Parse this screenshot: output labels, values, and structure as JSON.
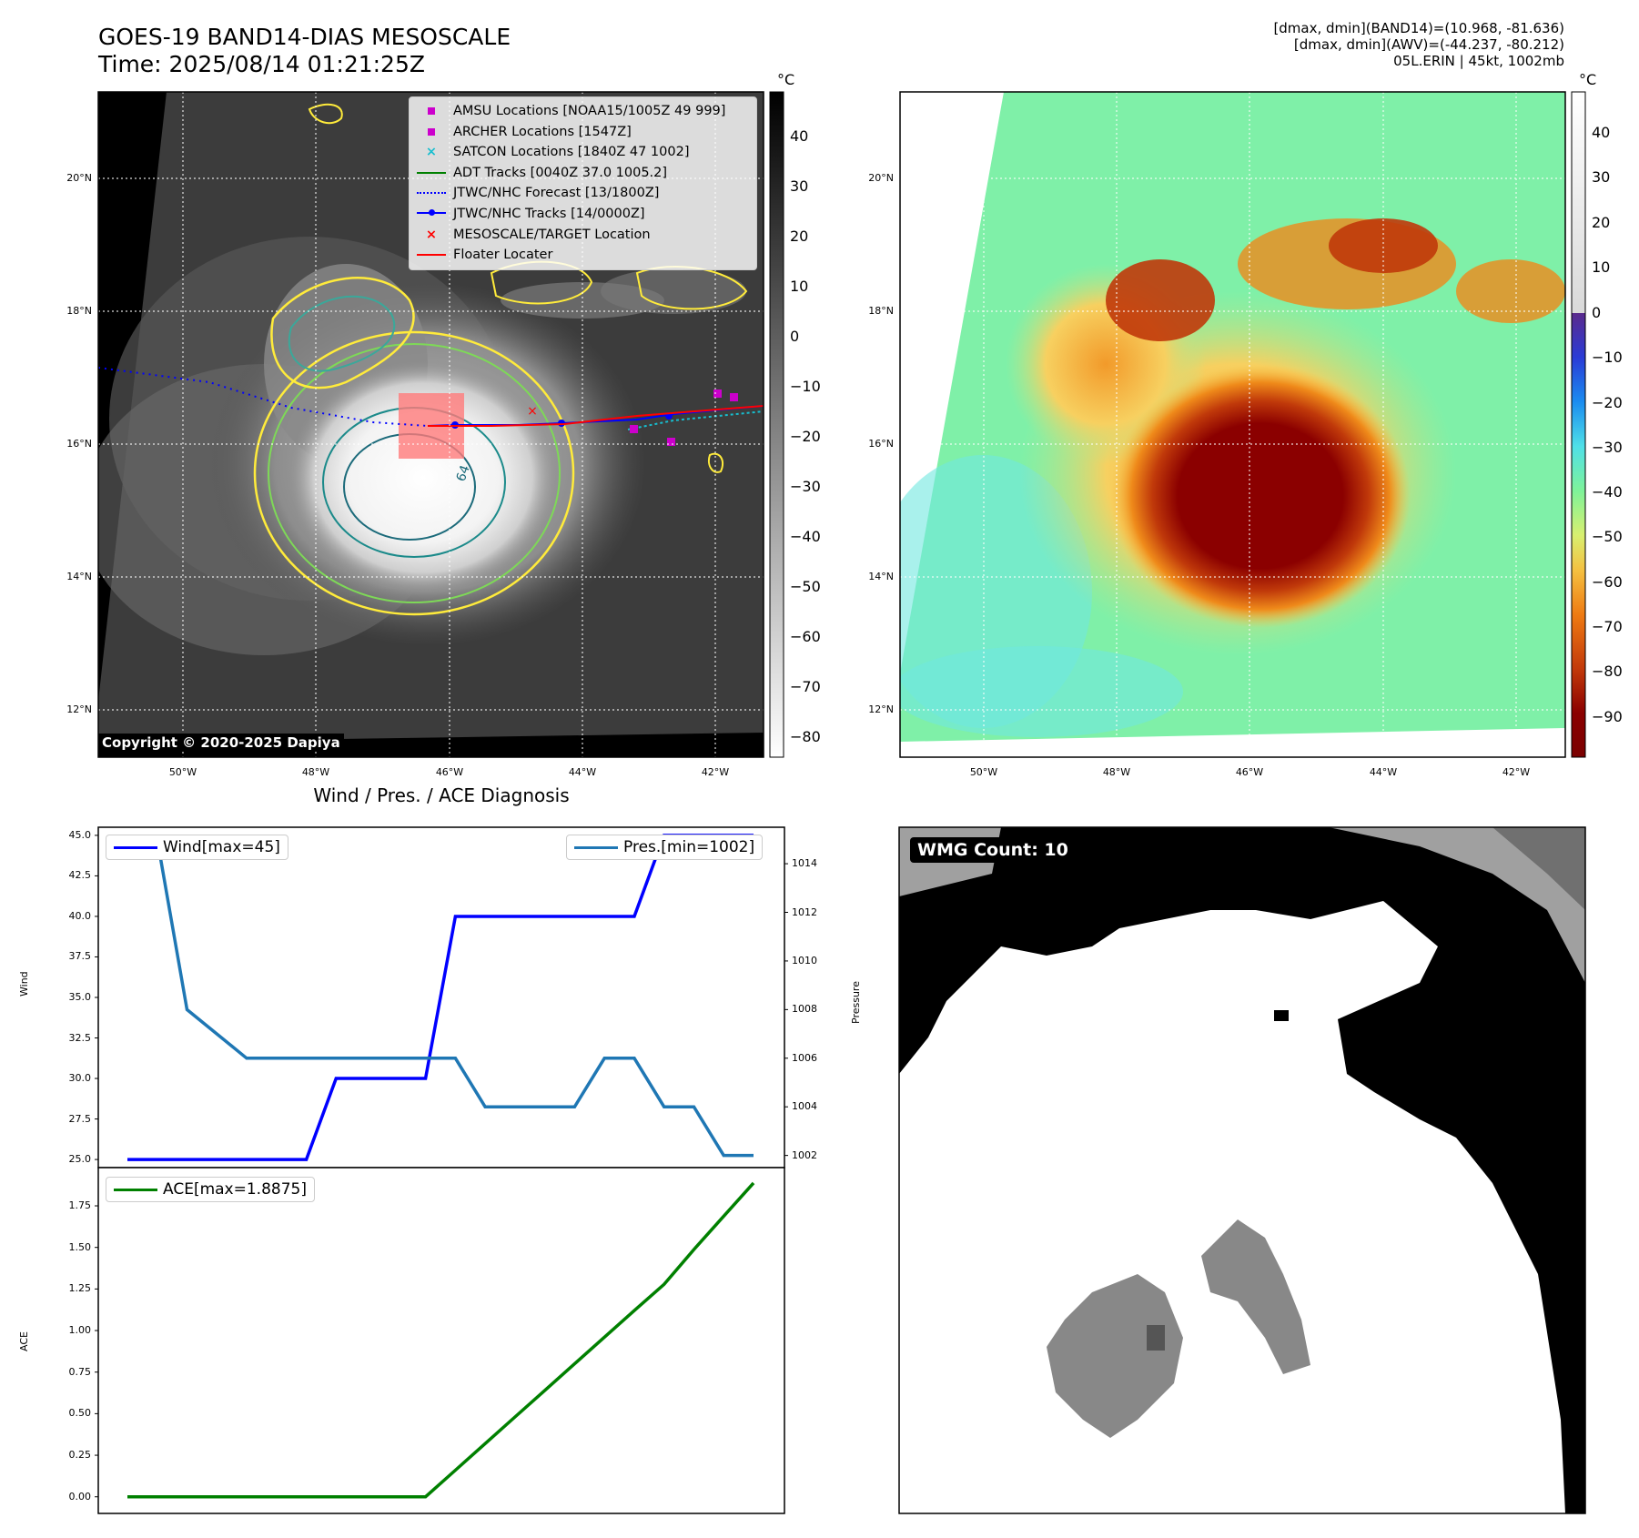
{
  "header": {
    "title_line1": "GOES-19 BAND14-DIAS MESOSCALE",
    "title_line2": "Time: 2025/08/14 01:21:25Z",
    "info_line1": "[dmax, dmin](BAND14)=(10.968, -81.636)",
    "info_line2": "[dmax, dmin](AWV)=(-44.237, -80.212)",
    "info_line3": "05L.ERIN | 45kt, 1002mb"
  },
  "map_axes": {
    "lat_labels": [
      "20°N",
      "18°N",
      "16°N",
      "14°N",
      "12°N"
    ],
    "lon_labels": [
      "50°W",
      "48°W",
      "46°W",
      "44°W",
      "42°W"
    ]
  },
  "ir_panel": {
    "colorbar_unit": "°C",
    "colorbar_ticks": [
      "40",
      "30",
      "20",
      "10",
      "0",
      "−10",
      "−20",
      "−30",
      "−40",
      "−50",
      "−60",
      "−70",
      "−80"
    ],
    "contour_label": "64",
    "copyright": "Copyright © 2020-2025 Dapiya",
    "legend": [
      {
        "label": "AMSU Locations [NOAA15/1005Z 49 999]",
        "color": "#cc00cc",
        "marker": "square"
      },
      {
        "label": "ARCHER Locations [1547Z]",
        "color": "#cc00cc",
        "marker": "square"
      },
      {
        "label": "SATCON Locations [1840Z 47 1002]",
        "color": "#17becf",
        "marker": "x"
      },
      {
        "label": "ADT Tracks [0040Z 37.0 1005.2]",
        "color": "#008000",
        "marker": "line"
      },
      {
        "label": "JTWC/NHC Forecast [13/1800Z]",
        "color": "#0000ff",
        "marker": "dotted"
      },
      {
        "label": "JTWC/NHC Tracks [14/0000Z]",
        "color": "#0000ff",
        "marker": "line-dot"
      },
      {
        "label": "MESOSCALE/TARGET Location",
        "color": "#ff0000",
        "marker": "x"
      },
      {
        "label": "Floater Locater",
        "color": "#ff0000",
        "marker": "line"
      }
    ]
  },
  "dias_panel": {
    "colorbar_unit": "°C",
    "colorbar_ticks": [
      "40",
      "30",
      "20",
      "10",
      "0",
      "−10",
      "−20",
      "−30",
      "−40",
      "−50",
      "−60",
      "−70",
      "−80",
      "−90"
    ]
  },
  "diagnosis_panel": {
    "title": "Wind / Pres. / ACE Diagnosis"
  },
  "wmg_panel": {
    "label": "WMG Count: 10"
  },
  "chart_data": [
    {
      "type": "line",
      "name": "wind-pressure",
      "x": [
        0,
        1,
        2,
        3,
        4,
        5,
        6,
        7,
        8,
        9,
        10,
        11,
        12,
        13,
        14,
        15,
        16,
        17,
        18,
        19,
        20,
        21
      ],
      "series": [
        {
          "name": "Wind[max=45]",
          "axis": "left",
          "color": "#0000ff",
          "values": [
            25,
            25,
            25,
            25,
            25,
            25,
            25,
            30,
            30,
            30,
            30,
            40,
            40,
            40,
            40,
            40,
            40,
            40,
            45,
            45,
            45,
            45
          ]
        },
        {
          "name": "Pres.[min=1002]",
          "axis": "right",
          "color": "#1f77b4",
          "values": [
            1015,
            1015,
            1008,
            1007,
            1006,
            1006,
            1006,
            1006,
            1006,
            1006,
            1006,
            1006,
            1004,
            1004,
            1004,
            1004,
            1006,
            1006,
            1004,
            1004,
            1002,
            1002
          ]
        }
      ],
      "ylabel_left": "Wind",
      "ylabel_right": "Pressure",
      "ylim_left": [
        24.5,
        45.5
      ],
      "ylim_right": [
        1001.5,
        1015.5
      ],
      "yticks_left": [
        25.0,
        27.5,
        30.0,
        32.5,
        35.0,
        37.5,
        40.0,
        42.5,
        45.0
      ],
      "yticks_right": [
        1002,
        1004,
        1006,
        1008,
        1010,
        1012,
        1014
      ],
      "legend_left": "top-left",
      "legend_right": "top-right"
    },
    {
      "type": "line",
      "name": "ace",
      "x": [
        0,
        1,
        2,
        3,
        4,
        5,
        6,
        7,
        8,
        9,
        10,
        11,
        12,
        13,
        14,
        15,
        16,
        17,
        18,
        19,
        20,
        21
      ],
      "series": [
        {
          "name": "ACE[max=1.8875]",
          "color": "#008000",
          "values": [
            0,
            0,
            0,
            0,
            0,
            0,
            0,
            0,
            0,
            0,
            0,
            0.16,
            0.32,
            0.48,
            0.64,
            0.8,
            0.96,
            1.12,
            1.2775,
            1.4875,
            1.6875,
            1.8875
          ]
        }
      ],
      "ylabel": "ACE",
      "ylim": [
        -0.1,
        1.98
      ],
      "yticks": [
        0.0,
        0.25,
        0.5,
        0.75,
        1.0,
        1.25,
        1.5,
        1.75
      ],
      "legend": "top-left"
    }
  ]
}
